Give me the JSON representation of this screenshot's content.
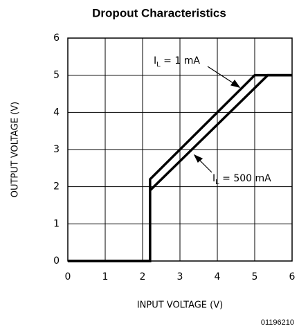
{
  "chart_data": {
    "type": "line",
    "title": "Dropout Characteristics",
    "x_label": "INPUT VOLTAGE (V)",
    "y_label": "OUTPUT VOLTAGE (V)",
    "footnote": "01196210",
    "xlim": [
      0,
      6
    ],
    "ylim": [
      0,
      6
    ],
    "xticks": [
      0,
      1,
      2,
      3,
      4,
      5,
      6
    ],
    "yticks": [
      0,
      1,
      2,
      3,
      4,
      5,
      6
    ],
    "grid": true,
    "series": [
      {
        "label_parts": [
          "I",
          "L",
          " = 1 mA"
        ],
        "color": "#000000",
        "x": [
          0,
          2.2,
          2.2,
          5.0,
          6
        ],
        "values": [
          0,
          0,
          2.2,
          5.0,
          5.0
        ]
      },
      {
        "label_parts": [
          "I",
          "L",
          " = 500 mA"
        ],
        "color": "#000000",
        "x": [
          0,
          2.2,
          2.2,
          5.35,
          6
        ],
        "values": [
          0,
          0,
          1.9,
          5.0,
          5.0
        ]
      }
    ]
  }
}
